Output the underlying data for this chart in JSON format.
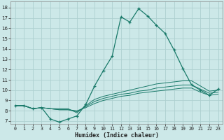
{
  "xlabel": "Humidex (Indice chaleur)",
  "bg_color": "#cce8e8",
  "grid_color": "#aed0d0",
  "line_color": "#1a7a6a",
  "x_ticks": [
    0,
    1,
    2,
    3,
    4,
    5,
    6,
    7,
    8,
    9,
    10,
    11,
    12,
    13,
    14,
    15,
    16,
    17,
    18,
    19,
    20,
    21,
    22,
    23
  ],
  "y_ticks": [
    7,
    8,
    9,
    10,
    11,
    12,
    13,
    14,
    15,
    16,
    17,
    18
  ],
  "ylim": [
    6.7,
    18.6
  ],
  "xlim": [
    -0.5,
    23.5
  ],
  "series": [
    [
      8.5,
      8.5,
      8.2,
      8.3,
      7.2,
      6.9,
      7.2,
      7.5,
      8.6,
      10.4,
      11.9,
      13.3,
      17.1,
      16.6,
      17.9,
      17.2,
      16.3,
      15.5,
      13.9,
      12.1,
      10.5,
      10.0,
      9.5,
      10.1
    ],
    [
      8.5,
      8.5,
      8.2,
      8.3,
      8.2,
      8.2,
      8.2,
      7.8,
      8.5,
      9.1,
      9.4,
      9.6,
      9.8,
      10.0,
      10.2,
      10.4,
      10.6,
      10.7,
      10.8,
      10.9,
      10.9,
      10.4,
      9.9,
      10.0
    ],
    [
      8.5,
      8.5,
      8.2,
      8.3,
      8.2,
      8.1,
      8.1,
      7.9,
      8.4,
      8.9,
      9.2,
      9.4,
      9.6,
      9.7,
      9.9,
      10.0,
      10.2,
      10.3,
      10.4,
      10.5,
      10.5,
      10.1,
      9.7,
      9.8
    ],
    [
      8.5,
      8.5,
      8.2,
      8.3,
      8.2,
      8.1,
      8.1,
      8.0,
      8.3,
      8.7,
      9.0,
      9.2,
      9.4,
      9.5,
      9.7,
      9.8,
      9.9,
      10.0,
      10.1,
      10.2,
      10.2,
      9.8,
      9.5,
      9.6
    ]
  ]
}
